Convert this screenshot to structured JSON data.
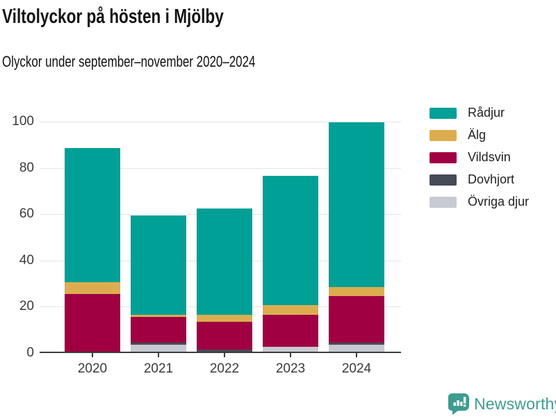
{
  "header": {
    "title": "Viltolyckor på hösten i Mjölby",
    "subtitle": "Olyckor under september–november 2020–2024"
  },
  "chart_data": {
    "type": "bar",
    "stacked": true,
    "title": "Viltolyckor på hösten i Mjölby",
    "subtitle": "Olyckor under september–november 2020–2024",
    "categories": [
      "2020",
      "2021",
      "2022",
      "2023",
      "2024"
    ],
    "series": [
      {
        "name": "Övriga djur",
        "color": "#c8cad2",
        "values": [
          0,
          3,
          0,
          2,
          3
        ]
      },
      {
        "name": "Dovhjort",
        "color": "#464a59",
        "values": [
          0,
          1,
          1,
          0,
          1
        ]
      },
      {
        "name": "Vildsvin",
        "color": "#a00041",
        "values": [
          25,
          11,
          12,
          14,
          20
        ]
      },
      {
        "name": "Älg",
        "color": "#dcad4f",
        "values": [
          5,
          1,
          3,
          4,
          4
        ]
      },
      {
        "name": "Rådjur",
        "color": "#00a096",
        "values": [
          58,
          43,
          46,
          56,
          71
        ]
      }
    ],
    "totals": [
      88,
      59,
      62,
      76,
      99
    ],
    "ylim": [
      0,
      100
    ],
    "yticks": [
      0,
      20,
      40,
      60,
      80,
      100
    ],
    "xlabel": "",
    "ylabel": "",
    "grid": true,
    "legend_position": "top-right",
    "legend_order": [
      "Rådjur",
      "Älg",
      "Vildsvin",
      "Dovhjort",
      "Övriga djur"
    ]
  },
  "colors": {
    "axis": "#3c3c3c",
    "gridline": "#e4e4e4",
    "tick_label": "#3a3a3a",
    "brand": "#3d9c90"
  },
  "footer": {
    "brand": "Newsworthy"
  }
}
